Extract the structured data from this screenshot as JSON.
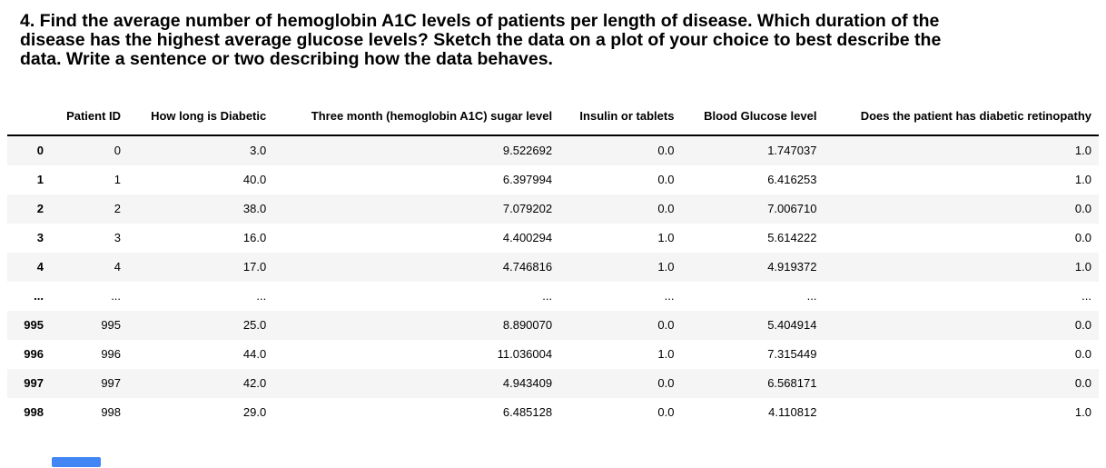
{
  "question": {
    "lines": [
      "4. Find the average number of hemoglobin A1C levels of patients per length of disease. Which duration of the",
      "disease has the highest average glucose levels? Sketch the data on a plot of your choice to best describe the",
      "data. Write a sentence or two describing how the data behaves."
    ]
  },
  "table": {
    "index_header": "",
    "columns": [
      "Patient ID",
      "How long is Diabetic",
      "Three month (hemoglobin A1C) sugar level",
      "Insulin or tablets",
      "Blood Glucose level",
      "Does the patient has diabetic retinopathy"
    ],
    "rows": [
      {
        "index": "0",
        "cells": [
          "0",
          "3.0",
          "9.522692",
          "0.0",
          "1.747037",
          "1.0"
        ]
      },
      {
        "index": "1",
        "cells": [
          "1",
          "40.0",
          "6.397994",
          "0.0",
          "6.416253",
          "1.0"
        ]
      },
      {
        "index": "2",
        "cells": [
          "2",
          "38.0",
          "7.079202",
          "0.0",
          "7.006710",
          "0.0"
        ]
      },
      {
        "index": "3",
        "cells": [
          "3",
          "16.0",
          "4.400294",
          "1.0",
          "5.614222",
          "0.0"
        ]
      },
      {
        "index": "4",
        "cells": [
          "4",
          "17.0",
          "4.746816",
          "1.0",
          "4.919372",
          "1.0"
        ]
      },
      {
        "index": "...",
        "cells": [
          "...",
          "...",
          "...",
          "...",
          "...",
          "..."
        ]
      },
      {
        "index": "995",
        "cells": [
          "995",
          "25.0",
          "8.890070",
          "0.0",
          "5.404914",
          "0.0"
        ]
      },
      {
        "index": "996",
        "cells": [
          "996",
          "44.0",
          "11.036004",
          "1.0",
          "7.315449",
          "0.0"
        ]
      },
      {
        "index": "997",
        "cells": [
          "997",
          "42.0",
          "4.943409",
          "0.0",
          "6.568171",
          "0.0"
        ]
      },
      {
        "index": "998",
        "cells": [
          "998",
          "29.0",
          "6.485128",
          "0.0",
          "4.110812",
          "1.0"
        ]
      }
    ],
    "stripe_color": "#f5f5f5",
    "header_rule_color": "#000000"
  },
  "scrollbar": {
    "thumb_color": "#4285f4"
  }
}
